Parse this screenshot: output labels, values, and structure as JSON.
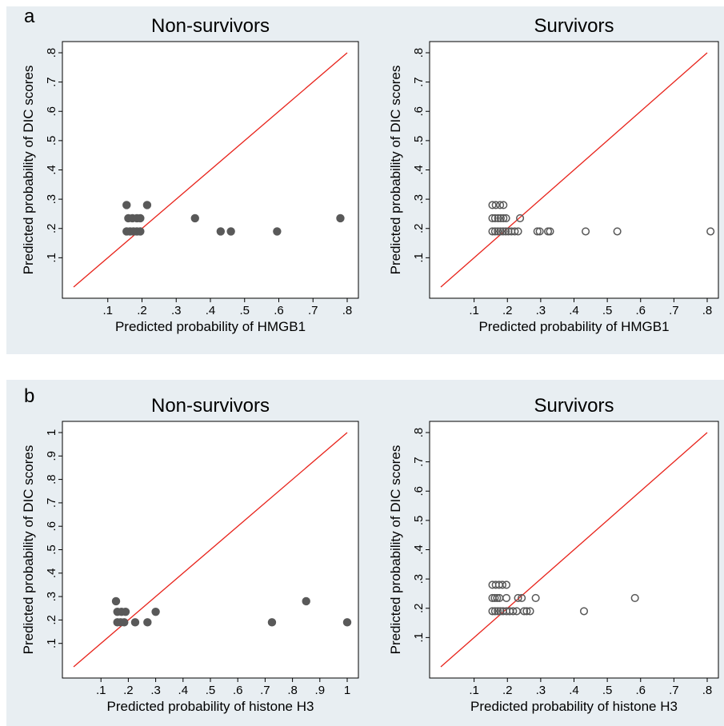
{
  "panel_labels": [
    "a",
    "b"
  ],
  "colors": {
    "outer_background": "#e8eef2",
    "plot_background": "#ffffff",
    "reference_line": "#e8231b",
    "marker": "#595959"
  },
  "chart_data": [
    {
      "type": "scatter",
      "panel": "a",
      "title": "Non-survivors",
      "xlabel": "Predicted probability of HMGB1",
      "ylabel": "Predicted probability of DIC scores",
      "xlim": [
        0,
        0.8
      ],
      "ylim": [
        0,
        0.8
      ],
      "xticks": [
        ".1",
        ".2",
        ".3",
        ".4",
        ".5",
        ".6",
        ".7",
        ".8"
      ],
      "yticks": [
        ".1",
        ".2",
        ".3",
        ".4",
        ".5",
        ".6",
        ".7",
        ".8"
      ],
      "marker": "filled",
      "reference_line": "y = x",
      "points": [
        {
          "x": 0.155,
          "y": 0.28
        },
        {
          "x": 0.215,
          "y": 0.28
        },
        {
          "x": 0.16,
          "y": 0.235
        },
        {
          "x": 0.172,
          "y": 0.235
        },
        {
          "x": 0.185,
          "y": 0.235
        },
        {
          "x": 0.195,
          "y": 0.235
        },
        {
          "x": 0.155,
          "y": 0.19
        },
        {
          "x": 0.165,
          "y": 0.19
        },
        {
          "x": 0.175,
          "y": 0.19
        },
        {
          "x": 0.185,
          "y": 0.19
        },
        {
          "x": 0.195,
          "y": 0.19
        },
        {
          "x": 0.355,
          "y": 0.235
        },
        {
          "x": 0.43,
          "y": 0.19
        },
        {
          "x": 0.46,
          "y": 0.19
        },
        {
          "x": 0.595,
          "y": 0.19
        },
        {
          "x": 0.78,
          "y": 0.235
        }
      ]
    },
    {
      "type": "scatter",
      "panel": "a",
      "title": "Survivors",
      "xlabel": "Predicted probability of HMGB1",
      "ylabel": "Predicted probability of DIC scores",
      "xlim": [
        0,
        0.8
      ],
      "ylim": [
        0,
        0.8
      ],
      "xticks": [
        ".1",
        ".2",
        ".3",
        ".4",
        ".5",
        ".6",
        ".7",
        ".8"
      ],
      "yticks": [
        ".1",
        ".2",
        ".3",
        ".4",
        ".5",
        ".6",
        ".7",
        ".8"
      ],
      "marker": "hollow",
      "reference_line": "y = x",
      "points": [
        {
          "x": 0.155,
          "y": 0.28
        },
        {
          "x": 0.165,
          "y": 0.28
        },
        {
          "x": 0.178,
          "y": 0.28
        },
        {
          "x": 0.188,
          "y": 0.28
        },
        {
          "x": 0.155,
          "y": 0.235
        },
        {
          "x": 0.163,
          "y": 0.235
        },
        {
          "x": 0.172,
          "y": 0.235
        },
        {
          "x": 0.18,
          "y": 0.235
        },
        {
          "x": 0.188,
          "y": 0.235
        },
        {
          "x": 0.196,
          "y": 0.235
        },
        {
          "x": 0.238,
          "y": 0.235
        },
        {
          "x": 0.155,
          "y": 0.19
        },
        {
          "x": 0.163,
          "y": 0.19
        },
        {
          "x": 0.171,
          "y": 0.19
        },
        {
          "x": 0.179,
          "y": 0.19
        },
        {
          "x": 0.187,
          "y": 0.19
        },
        {
          "x": 0.195,
          "y": 0.19
        },
        {
          "x": 0.203,
          "y": 0.19
        },
        {
          "x": 0.212,
          "y": 0.19
        },
        {
          "x": 0.222,
          "y": 0.19
        },
        {
          "x": 0.232,
          "y": 0.19
        },
        {
          "x": 0.29,
          "y": 0.19
        },
        {
          "x": 0.297,
          "y": 0.19
        },
        {
          "x": 0.322,
          "y": 0.19
        },
        {
          "x": 0.328,
          "y": 0.19
        },
        {
          "x": 0.435,
          "y": 0.19
        },
        {
          "x": 0.53,
          "y": 0.19
        },
        {
          "x": 0.81,
          "y": 0.19
        }
      ]
    },
    {
      "type": "scatter",
      "panel": "b",
      "title": "Non-survivors",
      "xlabel": "Predicted probability of histone H3",
      "ylabel": "Predicted probability of DIC scores",
      "xlim": [
        0,
        1
      ],
      "ylim": [
        0,
        1
      ],
      "xticks": [
        ".1",
        ".2",
        ".3",
        ".4",
        ".5",
        ".6",
        ".7",
        ".8",
        ".9",
        "1"
      ],
      "yticks": [
        ".1",
        ".2",
        ".3",
        ".4",
        ".5",
        ".6",
        ".7",
        ".8",
        ".9",
        "1"
      ],
      "marker": "filled",
      "reference_line": "y = x",
      "points": [
        {
          "x": 0.155,
          "y": 0.28
        },
        {
          "x": 0.16,
          "y": 0.235
        },
        {
          "x": 0.175,
          "y": 0.235
        },
        {
          "x": 0.19,
          "y": 0.235
        },
        {
          "x": 0.3,
          "y": 0.235
        },
        {
          "x": 0.16,
          "y": 0.19
        },
        {
          "x": 0.172,
          "y": 0.19
        },
        {
          "x": 0.185,
          "y": 0.19
        },
        {
          "x": 0.225,
          "y": 0.19
        },
        {
          "x": 0.27,
          "y": 0.19
        },
        {
          "x": 0.725,
          "y": 0.19
        },
        {
          "x": 0.85,
          "y": 0.28
        },
        {
          "x": 1.0,
          "y": 0.19
        }
      ]
    },
    {
      "type": "scatter",
      "panel": "b",
      "title": "Survivors",
      "xlabel": "Predicted probability of histone H3",
      "ylabel": "Predicted probability of DIC scores",
      "xlim": [
        0,
        0.8
      ],
      "ylim": [
        0,
        0.8
      ],
      "xticks": [
        ".1",
        ".2",
        ".3",
        ".4",
        ".5",
        ".6",
        ".7",
        ".8"
      ],
      "yticks": [
        ".1",
        ".2",
        ".3",
        ".4",
        ".5",
        ".6",
        ".7",
        ".8"
      ],
      "marker": "hollow",
      "reference_line": "y = x",
      "points": [
        {
          "x": 0.155,
          "y": 0.28
        },
        {
          "x": 0.165,
          "y": 0.28
        },
        {
          "x": 0.175,
          "y": 0.28
        },
        {
          "x": 0.185,
          "y": 0.28
        },
        {
          "x": 0.197,
          "y": 0.28
        },
        {
          "x": 0.155,
          "y": 0.235
        },
        {
          "x": 0.162,
          "y": 0.235
        },
        {
          "x": 0.169,
          "y": 0.235
        },
        {
          "x": 0.176,
          "y": 0.235
        },
        {
          "x": 0.197,
          "y": 0.235
        },
        {
          "x": 0.232,
          "y": 0.235
        },
        {
          "x": 0.243,
          "y": 0.235
        },
        {
          "x": 0.285,
          "y": 0.235
        },
        {
          "x": 0.155,
          "y": 0.19
        },
        {
          "x": 0.163,
          "y": 0.19
        },
        {
          "x": 0.171,
          "y": 0.19
        },
        {
          "x": 0.179,
          "y": 0.19
        },
        {
          "x": 0.187,
          "y": 0.19
        },
        {
          "x": 0.197,
          "y": 0.19
        },
        {
          "x": 0.207,
          "y": 0.19
        },
        {
          "x": 0.217,
          "y": 0.19
        },
        {
          "x": 0.228,
          "y": 0.19
        },
        {
          "x": 0.25,
          "y": 0.19
        },
        {
          "x": 0.258,
          "y": 0.19
        },
        {
          "x": 0.268,
          "y": 0.19
        },
        {
          "x": 0.43,
          "y": 0.19
        },
        {
          "x": 0.583,
          "y": 0.235
        }
      ]
    }
  ]
}
